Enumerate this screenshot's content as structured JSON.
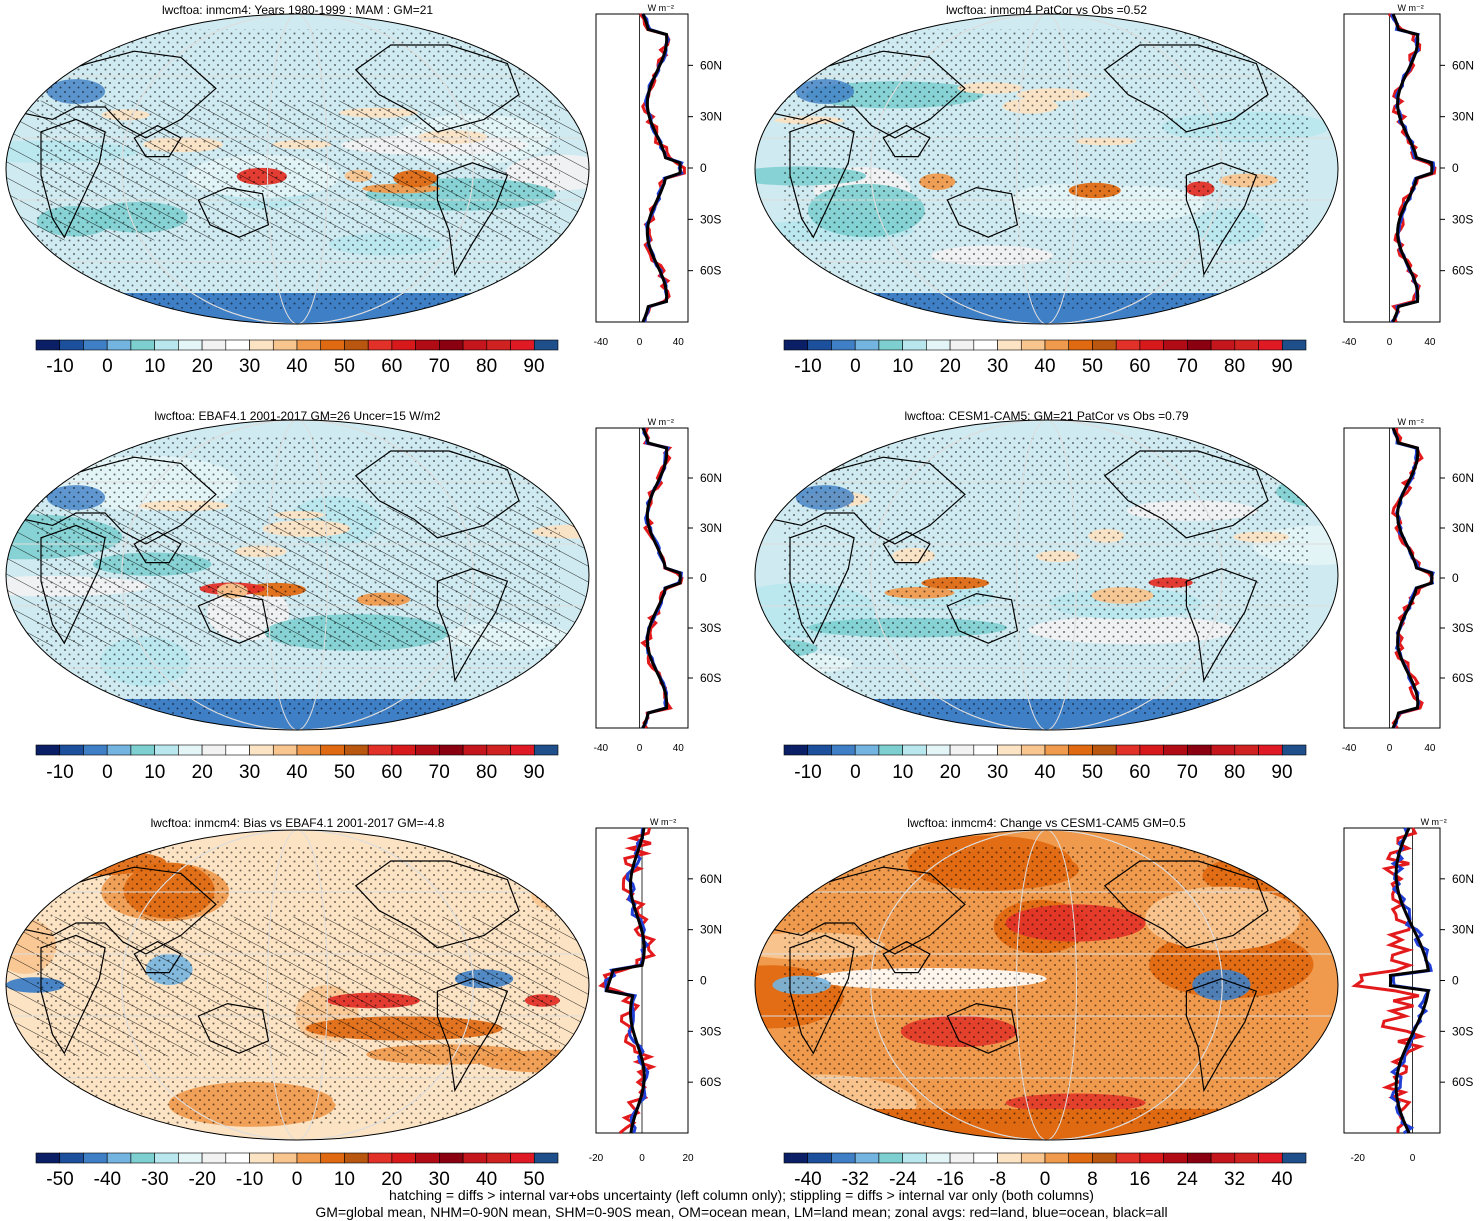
{
  "colors": {
    "land_outline": "#000000",
    "zonal_land": "#e31a1c",
    "zonal_ocean": "#1f3fd6",
    "zonal_all": "#000000",
    "ocean_default": "#cfeaf0"
  },
  "panels": [
    {
      "id": "model-climatology",
      "title": "lwcftoa: inmcm4: Years 1980-1999 : MAM : GM=21",
      "kind": "abs",
      "colorbar": {
        "labels": [
          "-10",
          "0",
          "10",
          "20",
          "30",
          "40",
          "50",
          "60",
          "70",
          "80",
          "90"
        ],
        "colors": [
          "#0b1f66",
          "#1c4f9c",
          "#3f7fc6",
          "#74b4e0",
          "#7dcfd0",
          "#b8e7ee",
          "#e4f5f7",
          "#f2f2f2",
          "#ffffff",
          "#fbe3c4",
          "#f8c58f",
          "#f09a4d",
          "#e06a12",
          "#b9560f",
          "#e23128",
          "#d7191c",
          "#b10b16",
          "#8b0010",
          "#c4161c",
          "#d12222",
          "#e01a25",
          "#1f4f8b"
        ]
      },
      "zonal": {
        "xticks": [
          "-40",
          "0",
          "40"
        ],
        "yticks": [
          "60N",
          "30N",
          "0",
          "30S",
          "60S"
        ],
        "unit": "W m⁻²"
      }
    },
    {
      "id": "pattern-correlation",
      "title": "lwcftoa: inmcm4 PatCor vs Obs =0.52",
      "kind": "abs",
      "colorbar": {
        "labels": [
          "-10",
          "0",
          "10",
          "20",
          "30",
          "40",
          "50",
          "60",
          "70",
          "80",
          "90"
        ],
        "colors": [
          "#0b1f66",
          "#1c4f9c",
          "#3f7fc6",
          "#74b4e0",
          "#7dcfd0",
          "#b8e7ee",
          "#e4f5f7",
          "#f2f2f2",
          "#ffffff",
          "#fbe3c4",
          "#f8c58f",
          "#f09a4d",
          "#e06a12",
          "#b9560f",
          "#e23128",
          "#d7191c",
          "#b10b16",
          "#8b0010",
          "#c4161c",
          "#d12222",
          "#e01a25",
          "#1f4f8b"
        ]
      },
      "zonal": {
        "xticks": [
          "-40",
          "0",
          "40"
        ],
        "yticks": [
          "60N",
          "30N",
          "0",
          "30S",
          "60S"
        ],
        "unit": "W m⁻²"
      }
    },
    {
      "id": "observations",
      "title": "lwcftoa: EBAF4.1 2001-2017 GM=26 Uncer=15 W/m2",
      "kind": "abs",
      "colorbar": {
        "labels": [
          "-10",
          "0",
          "10",
          "20",
          "30",
          "40",
          "50",
          "60",
          "70",
          "80",
          "90"
        ],
        "colors": [
          "#0b1f66",
          "#1c4f9c",
          "#3f7fc6",
          "#74b4e0",
          "#7dcfd0",
          "#b8e7ee",
          "#e4f5f7",
          "#f2f2f2",
          "#ffffff",
          "#fbe3c4",
          "#f8c58f",
          "#f09a4d",
          "#e06a12",
          "#b9560f",
          "#e23128",
          "#d7191c",
          "#b10b16",
          "#8b0010",
          "#c4161c",
          "#d12222",
          "#e01a25",
          "#1f4f8b"
        ]
      },
      "zonal": {
        "xticks": [
          "-40",
          "0",
          "40"
        ],
        "yticks": [
          "60N",
          "30N",
          "0",
          "30S",
          "60S"
        ],
        "unit": "W m⁻²"
      }
    },
    {
      "id": "reference-model",
      "title": "lwcftoa: CESM1-CAM5: GM=21 PatCor vs Obs =0.79",
      "kind": "abs",
      "colorbar": {
        "labels": [
          "-10",
          "0",
          "10",
          "20",
          "30",
          "40",
          "50",
          "60",
          "70",
          "80",
          "90"
        ],
        "colors": [
          "#0b1f66",
          "#1c4f9c",
          "#3f7fc6",
          "#74b4e0",
          "#7dcfd0",
          "#b8e7ee",
          "#e4f5f7",
          "#f2f2f2",
          "#ffffff",
          "#fbe3c4",
          "#f8c58f",
          "#f09a4d",
          "#e06a12",
          "#b9560f",
          "#e23128",
          "#d7191c",
          "#b10b16",
          "#8b0010",
          "#c4161c",
          "#d12222",
          "#e01a25",
          "#1f4f8b"
        ]
      },
      "zonal": {
        "xticks": [
          "-40",
          "0",
          "40"
        ],
        "yticks": [
          "60N",
          "30N",
          "0",
          "30S",
          "60S"
        ],
        "unit": "W m⁻²"
      }
    },
    {
      "id": "bias",
      "title": "lwcftoa: inmcm4: Bias vs EBAF4.1 2001-2017 GM=-4.8",
      "kind": "bias",
      "colorbar": {
        "labels": [
          "-50",
          "-40",
          "-30",
          "-20",
          "-10",
          "0",
          "10",
          "20",
          "30",
          "40",
          "50"
        ],
        "colors": [
          "#0b1f66",
          "#1c4f9c",
          "#3f7fc6",
          "#74b4e0",
          "#7dcfd0",
          "#b8e7ee",
          "#e4f5f7",
          "#f2f2f2",
          "#ffffff",
          "#fbe3c4",
          "#f8c58f",
          "#f09a4d",
          "#e06a12",
          "#b9560f",
          "#e23128",
          "#d7191c",
          "#b10b16",
          "#8b0010",
          "#c4161c",
          "#d12222",
          "#e01a25",
          "#1f4f8b"
        ]
      },
      "zonal": {
        "xticks": [
          "-20",
          "0",
          "20"
        ],
        "yticks": [
          "60N",
          "30N",
          "0",
          "30S",
          "60S"
        ],
        "unit": "W m⁻²"
      }
    },
    {
      "id": "change",
      "title": "lwcftoa: inmcm4: Change vs CESM1-CAM5 GM=0.5",
      "kind": "change",
      "colorbar": {
        "labels": [
          "-40",
          "-32",
          "-24",
          "-16",
          "-8",
          "0",
          "8",
          "16",
          "24",
          "32",
          "40"
        ],
        "colors": [
          "#0b1f66",
          "#1c4f9c",
          "#3f7fc6",
          "#74b4e0",
          "#7dcfd0",
          "#b8e7ee",
          "#e4f5f7",
          "#f2f2f2",
          "#ffffff",
          "#fbe3c4",
          "#f8c58f",
          "#f09a4d",
          "#e06a12",
          "#b9560f",
          "#e23128",
          "#d7191c",
          "#b10b16",
          "#8b0010",
          "#c4161c",
          "#d12222",
          "#e01a25",
          "#1f4f8b"
        ]
      },
      "zonal": {
        "xticks": [
          "-20",
          "0"
        ],
        "yticks": [
          "60N",
          "30N",
          "0",
          "30S",
          "60S"
        ],
        "unit": "W m⁻²"
      }
    }
  ],
  "footnotes": [
    "hatching = diffs > internal var+obs uncertainty (left column only); stippling = diffs > internal var only (both columns)",
    "GM=global mean, NHM=0-90N mean, SHM=0-90S mean, OM=ocean mean, LM=land mean; zonal avgs: red=land, blue=ocean, black=all"
  ]
}
